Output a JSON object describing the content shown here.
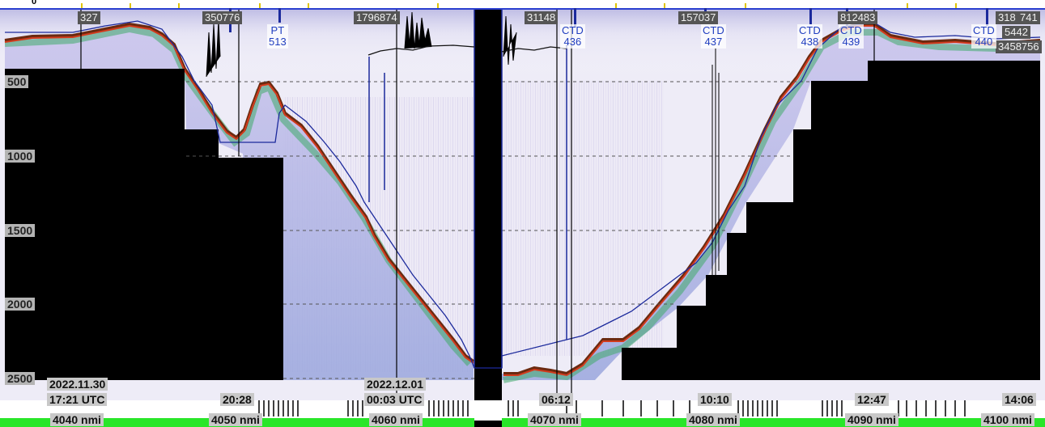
{
  "depth_scale": {
    "labels": [
      "500",
      "1000",
      "1500",
      "2000",
      "2500"
    ]
  },
  "top_ruler": {
    "zero_label": "0"
  },
  "ping_ids": [
    "327",
    "350776",
    "1796874",
    "31148",
    "157037",
    "812483",
    "318",
    "741",
    "5442",
    "3458756"
  ],
  "stations": [
    {
      "type": "PT",
      "number": "513"
    },
    {
      "type": "CTD",
      "number": "436"
    },
    {
      "type": "CTD",
      "number": "437"
    },
    {
      "type": "CTD",
      "number": "438"
    },
    {
      "type": "CTD",
      "number": "439"
    },
    {
      "type": "CTD",
      "number": "440"
    }
  ],
  "dates": [
    "2022.11.30",
    "2022.12.01"
  ],
  "times": [
    "17:21 UTC",
    "20:28",
    "00:03 UTC",
    "06:12",
    "10:10",
    "12:47",
    "14:06"
  ],
  "distances": [
    "4040 nmi",
    "4050 nmi",
    "4060 nmi",
    "4070 nmi",
    "4080 nmi",
    "4090 nmi",
    "4100 nmi"
  ],
  "colors": {
    "seabed": "#000000",
    "echo_background": "#e6e4f4",
    "bottom_line_dark": "#6b2a10",
    "bottom_line_red": "#d23a1c",
    "bottom_green": "#3faa6a",
    "bathymetry_line": "#1c2a9c",
    "track_bar": "#29e629",
    "station_text": "#1f3dbf"
  }
}
